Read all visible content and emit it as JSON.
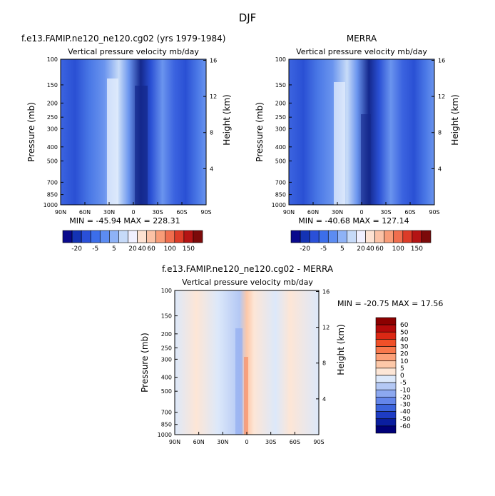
{
  "figure_title": "DJF",
  "chart_data": [
    {
      "type": "heatmap",
      "title": "f.e13.FAMIP.ne120_ne120.cg02 (yrs 1979-1984)",
      "subtitle": "Vertical pressure velocity mb/day",
      "ylabel": "Pressure (mb)",
      "y2label": "Height (km)",
      "x_ticks": [
        "90N",
        "60N",
        "30N",
        "0",
        "30S",
        "60S",
        "90S"
      ],
      "y_ticks": [
        "100",
        "150",
        "200",
        "250",
        "300",
        "400",
        "500",
        "700",
        "850",
        "1000"
      ],
      "y2_ticks": [
        "16",
        "12",
        "8",
        "4"
      ],
      "stats": "MIN = -45.94   MAX = 228.31",
      "colorbar_labels": [
        "-20",
        "-5",
        "5",
        "20",
        "40",
        "60",
        "100",
        "150"
      ],
      "min": -45.94,
      "max": 228.31
    },
    {
      "type": "heatmap",
      "title": "MERRA",
      "subtitle": "Vertical pressure velocity mb/day",
      "ylabel": "Pressure (mb)",
      "y2label": "Height (km)",
      "x_ticks": [
        "90N",
        "60N",
        "30N",
        "0",
        "30S",
        "60S",
        "90S"
      ],
      "y_ticks": [
        "100",
        "150",
        "200",
        "250",
        "300",
        "400",
        "500",
        "700",
        "850",
        "1000"
      ],
      "y2_ticks": [
        "16",
        "12",
        "8",
        "4"
      ],
      "stats": "MIN = -40.68   MAX = 127.14",
      "colorbar_labels": [
        "-20",
        "-5",
        "5",
        "20",
        "40",
        "60",
        "100",
        "150"
      ],
      "min": -40.68,
      "max": 127.14
    },
    {
      "type": "heatmap",
      "title": "f.e13.FAMIP.ne120_ne120.cg02 - MERRA",
      "subtitle": "Vertical pressure velocity mb/day",
      "ylabel": "Pressure (mb)",
      "y2label": "Height (km)",
      "x_ticks": [
        "90N",
        "60N",
        "30N",
        "0",
        "30S",
        "60S",
        "90S"
      ],
      "y_ticks": [
        "100",
        "150",
        "200",
        "250",
        "300",
        "400",
        "500",
        "700",
        "850",
        "1000"
      ],
      "y2_ticks": [
        "16",
        "12",
        "8",
        "4"
      ],
      "stats": "MIN = -20.75   MAX =  17.56",
      "colorbar_labels": [
        "60",
        "50",
        "40",
        "30",
        "20",
        "10",
        "5",
        "0",
        "-5",
        "-10",
        "-20",
        "-30",
        "-40",
        "-50",
        "-60"
      ],
      "min": -20.75,
      "max": 17.56
    }
  ],
  "colors": {
    "top_colorbar": [
      "#0a0a8c",
      "#1433b4",
      "#2a50d8",
      "#3c6eea",
      "#5c8cf2",
      "#8eb2f6",
      "#c6daf8",
      "#f0f0ff",
      "#fde2d2",
      "#fbc2a6",
      "#f89c78",
      "#f06e4e",
      "#dc3c28",
      "#b41414",
      "#7c0a0a"
    ],
    "diff_colorbar": [
      "#8c0000",
      "#b40a0a",
      "#dc2814",
      "#f05028",
      "#f8784c",
      "#fca078",
      "#fdc8a8",
      "#fde6d6",
      "#dce8fa",
      "#b4c8f4",
      "#8ca8f0",
      "#6486ea",
      "#3c64dc",
      "#1e3cc4",
      "#0a1ea0",
      "#000078"
    ],
    "top_panel_bg": "#4a78e6",
    "diff_panel_bg": "#dce8fa"
  }
}
